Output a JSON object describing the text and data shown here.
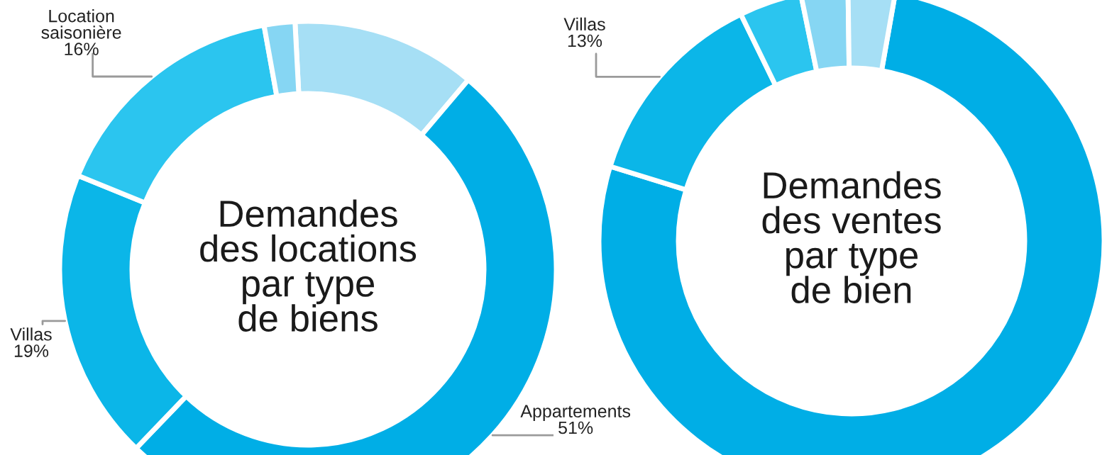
{
  "chart_data": [
    {
      "type": "donut",
      "title": "Demandes\ndes locations\npar type\nde biens",
      "categories": [
        null,
        "Appartements",
        "Villas",
        "Location\nsaisonière",
        null
      ],
      "values": [
        12,
        51,
        19,
        16,
        2
      ],
      "colors": [
        "#a6dff5",
        "#00aee6",
        "#0bb6e8",
        "#2bc5ef",
        "#86d6f3"
      ],
      "value_labels": [
        null,
        "51%",
        "19%",
        "16%",
        null
      ]
    },
    {
      "type": "donut",
      "title": "Demandes\ndes ventes\npar type\nde bien",
      "categories": [
        null,
        "Villas",
        null,
        null,
        null
      ],
      "values": [
        77,
        13,
        4,
        3,
        3
      ],
      "colors": [
        "#00aee6",
        "#0bb6e8",
        "#2bc5ef",
        "#86d6f3",
        "#a6dff5"
      ],
      "value_labels": [
        null,
        "13%",
        null,
        null,
        null
      ]
    }
  ]
}
